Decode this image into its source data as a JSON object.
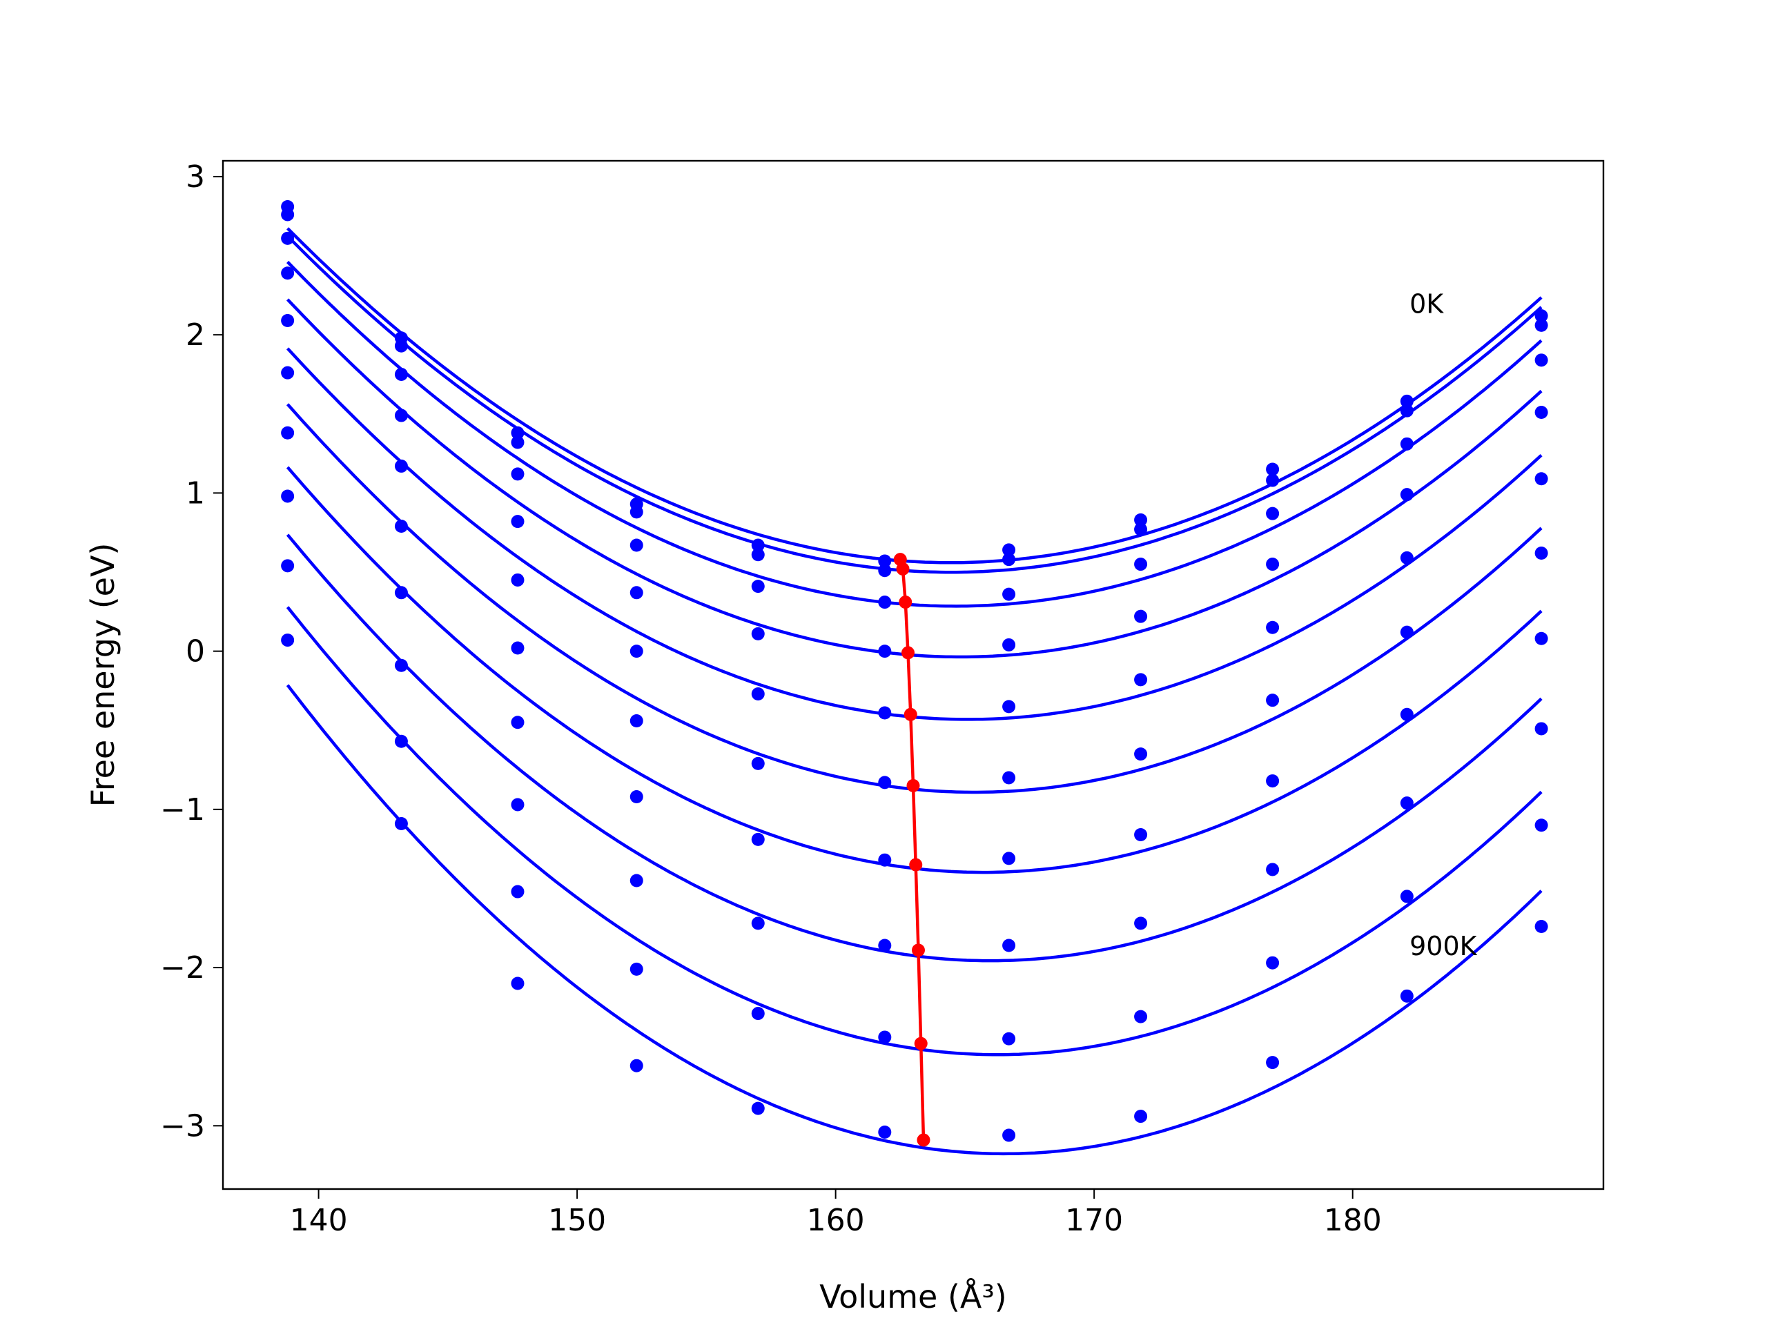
{
  "chart_data": {
    "type": "line",
    "xlabel": "Volume (Å³)",
    "ylabel": "Free energy (eV)",
    "xlim": [
      136.3,
      189.7
    ],
    "ylim": [
      -3.4,
      3.1
    ],
    "xticks": [
      140,
      150,
      160,
      170,
      180
    ],
    "yticks": [
      -3,
      -2,
      -1,
      0,
      1,
      2,
      3
    ],
    "grid": false,
    "annotations": [
      {
        "text": "0K",
        "x": 182.2,
        "y": 2.2
      },
      {
        "text": "900K",
        "x": 182.2,
        "y": -1.86
      }
    ],
    "x": [
      138.8,
      143.2,
      147.7,
      152.3,
      157.0,
      161.9,
      166.7,
      171.8,
      176.9,
      182.1,
      187.3
    ],
    "series": [
      {
        "values": [
          2.81,
          1.98,
          1.38,
          0.93,
          0.67,
          0.57,
          0.64,
          0.83,
          1.15,
          1.58,
          2.12
        ]
      },
      {
        "values": [
          2.76,
          1.93,
          1.32,
          0.88,
          0.61,
          0.51,
          0.58,
          0.77,
          1.08,
          1.52,
          2.06
        ]
      },
      {
        "values": [
          2.61,
          1.75,
          1.12,
          0.67,
          0.41,
          0.31,
          0.36,
          0.55,
          0.87,
          1.31,
          1.84
        ]
      },
      {
        "values": [
          2.39,
          1.49,
          0.82,
          0.37,
          0.11,
          0.0,
          0.04,
          0.22,
          0.55,
          0.99,
          1.51
        ]
      },
      {
        "values": [
          2.09,
          1.17,
          0.45,
          0.0,
          -0.27,
          -0.39,
          -0.35,
          -0.18,
          0.15,
          0.59,
          1.09
        ]
      },
      {
        "values": [
          1.76,
          0.79,
          0.02,
          -0.44,
          -0.71,
          -0.83,
          -0.8,
          -0.65,
          -0.31,
          0.12,
          0.62
        ]
      },
      {
        "values": [
          1.38,
          0.37,
          -0.45,
          -0.92,
          -1.19,
          -1.32,
          -1.31,
          -1.16,
          -0.82,
          -0.4,
          0.08
        ]
      },
      {
        "values": [
          0.98,
          -0.09,
          -0.97,
          -1.45,
          -1.72,
          -1.86,
          -1.86,
          -1.72,
          -1.38,
          -0.96,
          -0.49
        ]
      },
      {
        "values": [
          0.54,
          -0.57,
          -1.52,
          -2.01,
          -2.29,
          -2.44,
          -2.45,
          -2.31,
          -1.97,
          -1.55,
          -1.1
        ]
      },
      {
        "values": [
          0.07,
          -1.09,
          -2.1,
          -2.62,
          -2.89,
          -3.04,
          -3.06,
          -2.94,
          -2.6,
          -2.18,
          -1.74
        ]
      }
    ],
    "minima": {
      "x": [
        162.5,
        162.6,
        162.7,
        162.8,
        162.9,
        163.0,
        163.1,
        163.2,
        163.3,
        163.4
      ],
      "y": [
        0.58,
        0.52,
        0.31,
        -0.01,
        -0.4,
        -0.85,
        -1.35,
        -1.89,
        -2.48,
        -3.09
      ]
    },
    "colors": {
      "series": "#0000ff",
      "minima": "#ff0000"
    }
  }
}
